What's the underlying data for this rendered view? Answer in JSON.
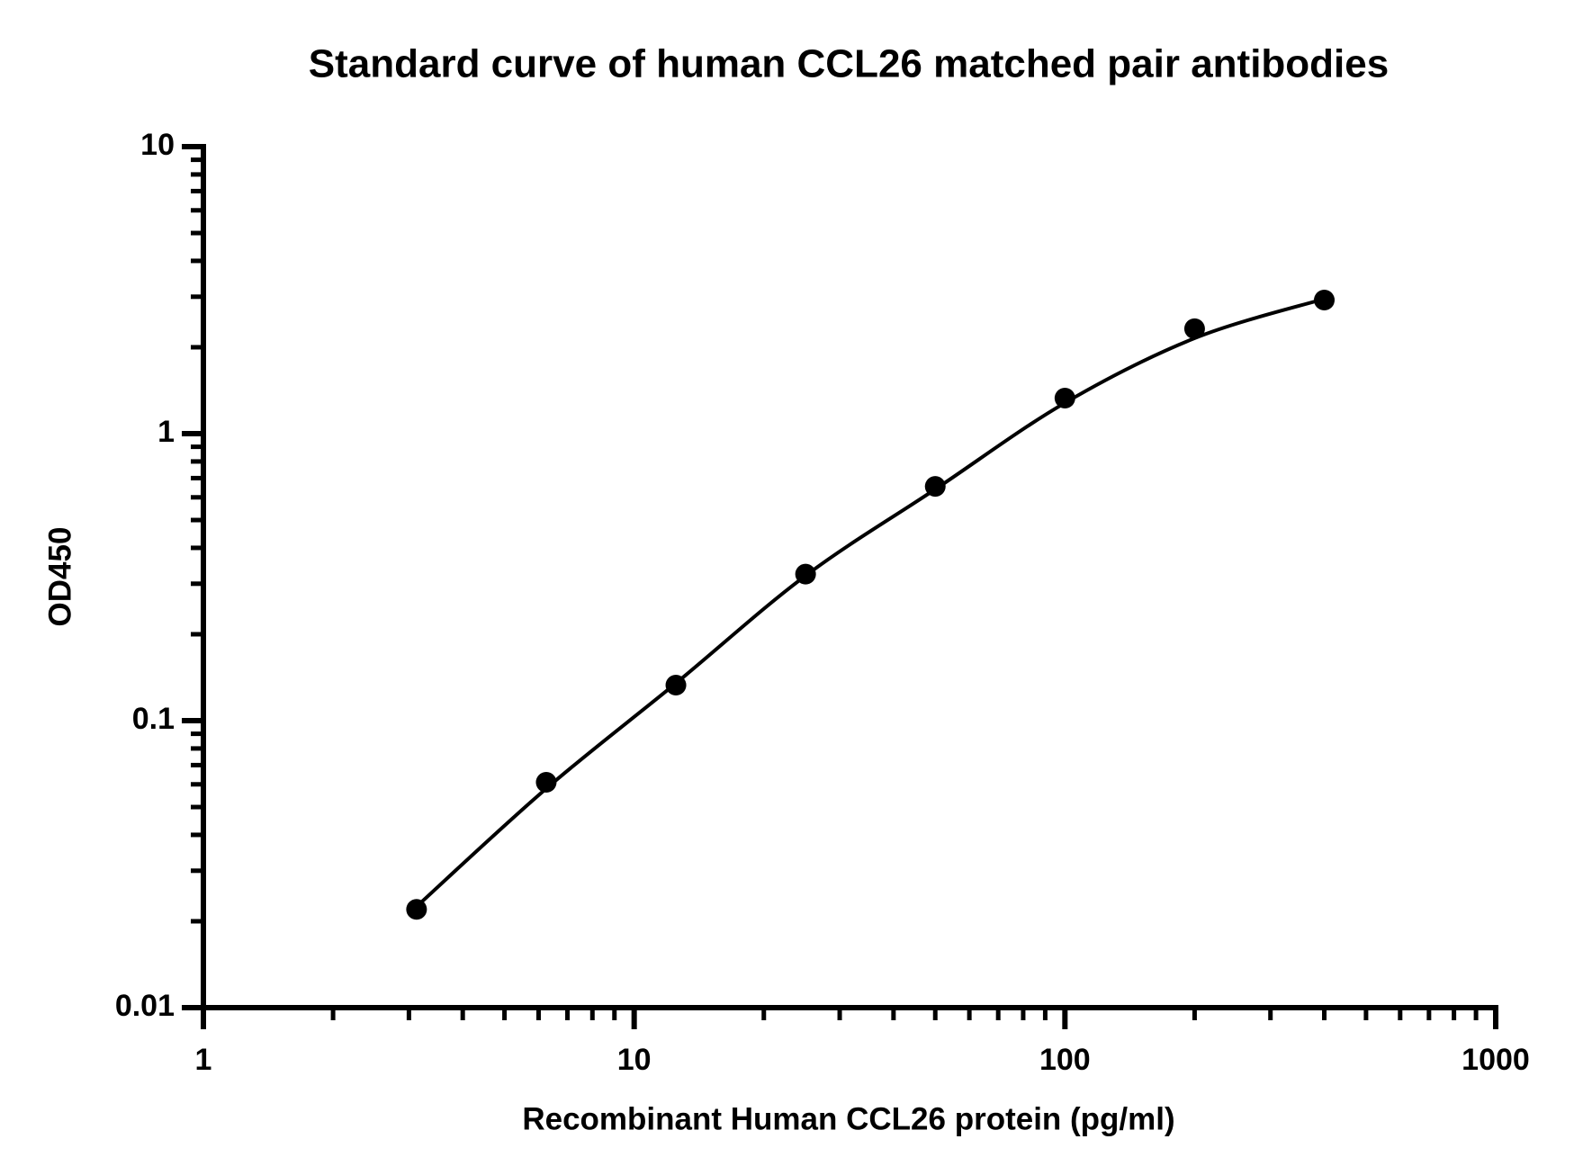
{
  "chart_data": {
    "type": "scatter",
    "title": "Standard curve of human CCL26 matched pair antibodies",
    "x_label": "Recombinant Human CCL26 protein (pg/ml)",
    "y_label": "OD450",
    "x_scale": "log",
    "y_scale": "log",
    "xlim": [
      1,
      1000
    ],
    "ylim": [
      0.01,
      10
    ],
    "xticks": [
      1,
      10,
      100,
      1000
    ],
    "yticks": [
      0.01,
      0.1,
      1,
      10
    ],
    "xminorticks": [
      2,
      3,
      4,
      5,
      6,
      7,
      8,
      9,
      20,
      30,
      40,
      50,
      60,
      70,
      80,
      90,
      200,
      300,
      400,
      500,
      600,
      700,
      800,
      900
    ],
    "yminorticks": [
      0.02,
      0.03,
      0.04,
      0.05,
      0.06,
      0.07,
      0.08,
      0.09,
      0.2,
      0.3,
      0.4,
      0.5,
      0.6,
      0.7,
      0.8,
      0.9,
      2,
      3,
      4,
      5,
      6,
      7,
      8,
      9
    ],
    "series": [
      {
        "type": "scatter",
        "color": "#000000",
        "x": [
          3.125,
          6.25,
          12.5,
          25,
          50,
          100,
          200,
          400
        ],
        "values": [
          0.022,
          0.061,
          0.133,
          0.324,
          0.655,
          1.33,
          2.32,
          2.92
        ]
      },
      {
        "type": "line",
        "color": "#000000",
        "x": [
          3.125,
          6.25,
          12.5,
          25,
          50,
          100,
          200,
          400
        ],
        "values": [
          0.0225,
          0.058,
          0.135,
          0.32,
          0.64,
          1.28,
          2.15,
          2.95
        ]
      }
    ]
  }
}
